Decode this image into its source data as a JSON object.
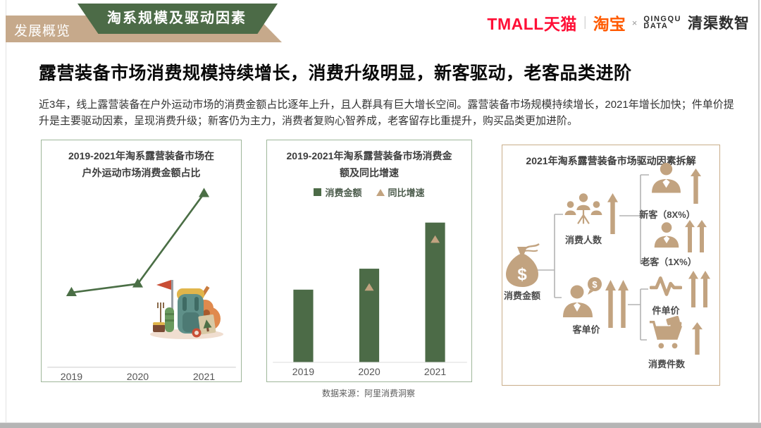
{
  "header": {
    "section_label": "发展概览",
    "banner_label": "淘系规模及驱动因素"
  },
  "brand": {
    "tmall": "TMALL天猫",
    "divider": "|",
    "taobao": "淘宝",
    "cross": "×",
    "qingqu_logo_top": "QINGQU",
    "qingqu_logo_bottom": "DATA",
    "qingqu_name": "清渠数智"
  },
  "headline": "露营装备市场消费规模持续增长，消费升级明显，新客驱动，老客品类进阶",
  "summary": "近3年，线上露营装备在户外运动市场的消费金额占比逐年上升，且人群具有巨大增长空间。露营装备市场规模持续增长，2021年增长加快；件单价提升是主要驱动因素，呈现消费升级；新客仍为主力，消费者复购心智养成，老客留存比重提升，购买品类更加进阶。",
  "source_note": "数据来源：阿里消费洞察",
  "colors": {
    "banner_green": "#4c6b47",
    "ribbon_tan": "#c6a98b",
    "chart_green": "#4a6e45",
    "marker_tan": "#c2a380",
    "panel_border_green": "#9fb79a",
    "panel_border_tan": "#c9ad8a",
    "tmall_red": "#ff0f36",
    "taobao_orange": "#ff5a00"
  },
  "chart_data": [
    {
      "type": "line",
      "title": "2019-2021年淘系露营装备市场在户外运动市场消费金额占比",
      "title_lines": [
        "2019-2021年淘系露营装备市场在",
        "户外运动市场消费金额占比"
      ],
      "categories": [
        "2019",
        "2020",
        "2021"
      ],
      "values_rel_estimated": [
        0.43,
        0.48,
        1.0
      ],
      "line_color": "#4a6e45",
      "marker": "triangle-up",
      "grid": false,
      "value_labels_shown": false
    },
    {
      "type": "bar",
      "title": "2019-2021年淘系露营装备市场消费金额及同比增速",
      "title_lines": [
        "2019-2021年淘系露营装备市场消费金",
        "额及同比增速"
      ],
      "categories": [
        "2019",
        "2020",
        "2021"
      ],
      "legend": [
        "消费金额",
        "同比增速"
      ],
      "series": [
        {
          "name": "消费金额",
          "kind": "bar",
          "color": "#4c6b47",
          "values_rel_estimated": [
            0.52,
            0.67,
            1.0
          ]
        },
        {
          "name": "同比增速",
          "kind": "point",
          "color": "#c2a380",
          "values_rel_estimated": [
            null,
            0.61,
            1.0
          ]
        }
      ],
      "grid": false,
      "value_labels_shown": false
    },
    {
      "type": "diagram",
      "title": "2021年淘系露营装备市场驱动因素拆解",
      "root": {
        "label": "消费金额",
        "icon": "money-bag"
      },
      "branches": [
        {
          "label": "消费人数",
          "icon": "people-group",
          "arrows_up": 1,
          "children": [
            {
              "label": "新客（8X%）",
              "icon": "person",
              "arrows_up": 1
            },
            {
              "label": "老客（1X%）",
              "icon": "person",
              "arrows_up": 2
            }
          ]
        },
        {
          "label": "客单价",
          "icon": "person-dollar",
          "arrows_up": 2,
          "children": [
            {
              "label": "件单价",
              "icon": "pulse",
              "arrows_up": 2
            },
            {
              "label": "消费件数",
              "icon": "cart",
              "arrows_up": 1
            }
          ]
        }
      ]
    }
  ]
}
